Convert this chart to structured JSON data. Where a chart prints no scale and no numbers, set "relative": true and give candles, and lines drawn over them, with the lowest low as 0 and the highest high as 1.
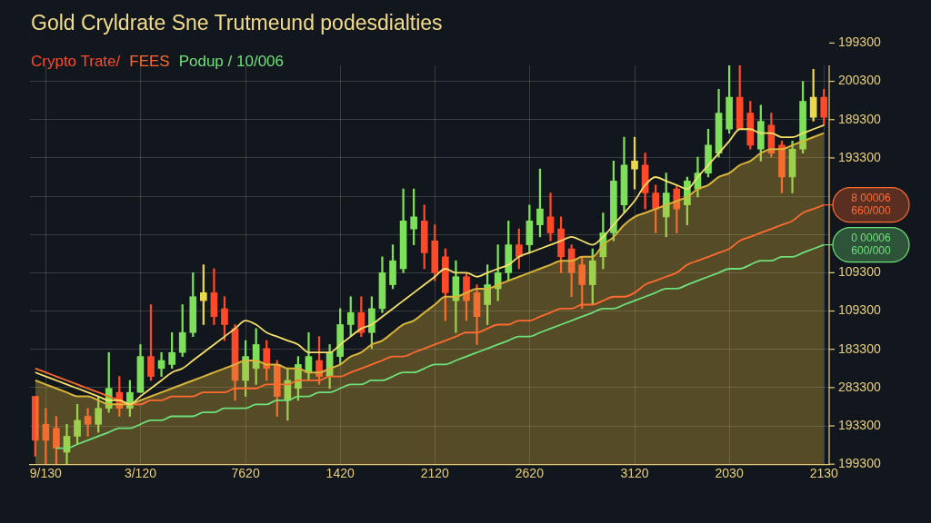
{
  "chart_data": {
    "type": "candlestick",
    "title": "Gold Cryldrate Sne Trutmeund podesdialties",
    "relative": true,
    "grid": true,
    "legend": "top left",
    "categories": [
      null,
      "9/130",
      null,
      null,
      null,
      null,
      null,
      null,
      null,
      null,
      "3/120",
      null,
      null,
      null,
      null,
      null,
      null,
      null,
      null,
      null,
      "7620",
      null,
      null,
      null,
      null,
      null,
      null,
      null,
      null,
      "1420",
      null,
      null,
      null,
      null,
      null,
      null,
      null,
      null,
      "2120",
      null,
      null,
      null,
      null,
      null,
      null,
      null,
      null,
      "2620",
      null,
      null,
      null,
      null,
      null,
      null,
      null,
      null,
      null,
      "3120",
      null,
      null,
      null,
      null,
      null,
      null,
      null,
      null,
      "2030",
      null,
      null,
      null,
      null,
      null,
      null,
      null,
      null,
      "2130"
    ],
    "annotations": [
      "199300",
      "200300",
      "189300",
      "193300",
      "109300",
      "109300",
      "183300",
      "283300",
      "193300",
      "199300",
      {
        "text": "8 00006\n660/000",
        "x": "2130",
        "y": 0.65
      },
      {
        "text": "0 00006\n600/000",
        "x": "2130",
        "y": 0.55
      }
    ],
    "series": [
      {
        "name": "Crypto Trate/",
        "color": "#ff4a2a",
        "ohlc": [
          [
            0.17,
            0.17,
            0.02,
            0.06
          ],
          [
            0.1,
            0.14,
            0,
            0.06
          ],
          [
            0.09,
            0.12,
            0,
            0.04
          ],
          [
            0.03,
            0.1,
            0,
            0.07
          ],
          [
            0.07,
            0.15,
            0.05,
            0.11
          ],
          [
            0.12,
            0.14,
            0.07,
            0.1
          ],
          [
            0.1,
            0.17,
            0.08,
            0.14
          ],
          [
            0.14,
            0.28,
            0.13,
            0.19
          ],
          [
            0.18,
            0.22,
            0.12,
            0.14
          ],
          [
            0.14,
            0.21,
            0.12,
            0.18
          ],
          [
            0.18,
            0.3,
            0.18,
            0.27
          ],
          [
            0.27,
            0.4,
            0.21,
            0.22
          ],
          [
            0.24,
            0.28,
            0.22,
            0.26
          ],
          [
            0.25,
            0.33,
            0.24,
            0.28
          ],
          [
            0.28,
            0.4,
            0.27,
            0.33
          ],
          [
            0.33,
            0.48,
            0.32,
            0.42
          ],
          [
            0.41,
            0.5,
            0.35,
            0.43
          ],
          [
            0.43,
            0.49,
            0.35,
            0.37
          ],
          [
            0.39,
            0.42,
            0.31,
            0.35
          ],
          [
            0.34,
            0.35,
            0.16,
            0.21
          ],
          [
            0.21,
            0.31,
            0.17,
            0.27
          ],
          [
            0.24,
            0.34,
            0.2,
            0.3
          ],
          [
            0.29,
            0.31,
            0.21,
            0.24
          ],
          [
            0.25,
            0.26,
            0.12,
            0.17
          ],
          [
            0.16,
            0.24,
            0.11,
            0.21
          ],
          [
            0.19,
            0.27,
            0.16,
            0.25
          ],
          [
            0.23,
            0.33,
            0.21,
            0.27
          ],
          [
            0.26,
            0.32,
            0.2,
            0.22
          ],
          [
            0.22,
            0.3,
            0.19,
            0.28
          ],
          [
            0.27,
            0.39,
            0.25,
            0.35
          ],
          [
            0.35,
            0.42,
            0.32,
            0.38
          ],
          [
            0.38,
            0.42,
            0.32,
            0.33
          ],
          [
            0.33,
            0.42,
            0.29,
            0.39
          ],
          [
            0.39,
            0.52,
            0.38,
            0.48
          ],
          [
            0.45,
            0.55,
            0.44,
            0.51
          ],
          [
            0.49,
            0.69,
            0.48,
            0.61
          ],
          [
            0.59,
            0.69,
            0.55,
            0.62
          ],
          [
            0.61,
            0.65,
            0.49,
            0.53
          ],
          [
            0.56,
            0.6,
            0.46,
            0.48
          ],
          [
            0.52,
            0.54,
            0.36,
            0.43
          ],
          [
            0.41,
            0.51,
            0.33,
            0.47
          ],
          [
            0.47,
            0.48,
            0.36,
            0.41
          ],
          [
            0.43,
            0.45,
            0.3,
            0.37
          ],
          [
            0.4,
            0.5,
            0.35,
            0.45
          ],
          [
            0.44,
            0.55,
            0.41,
            0.48
          ],
          [
            0.48,
            0.61,
            0.46,
            0.55
          ],
          [
            0.55,
            0.59,
            0.49,
            0.52
          ],
          [
            0.55,
            0.65,
            0.53,
            0.61
          ],
          [
            0.6,
            0.74,
            0.57,
            0.64
          ],
          [
            0.62,
            0.68,
            0.56,
            0.58
          ],
          [
            0.59,
            0.62,
            0.48,
            0.52
          ],
          [
            0.54,
            0.55,
            0.42,
            0.48
          ],
          [
            0.5,
            0.52,
            0.39,
            0.45
          ],
          [
            0.45,
            0.54,
            0.4,
            0.51
          ],
          [
            0.52,
            0.63,
            0.49,
            0.58
          ],
          [
            0.58,
            0.76,
            0.56,
            0.71
          ],
          [
            0.65,
            0.82,
            0.63,
            0.75
          ],
          [
            0.74,
            0.82,
            0.69,
            0.76
          ],
          [
            0.75,
            0.78,
            0.64,
            0.68
          ],
          [
            0.68,
            0.7,
            0.58,
            0.64
          ],
          [
            0.62,
            0.73,
            0.57,
            0.68
          ],
          [
            0.69,
            0.7,
            0.58,
            0.64
          ],
          [
            0.65,
            0.72,
            0.6,
            0.71
          ],
          [
            0.69,
            0.77,
            0.67,
            0.73
          ],
          [
            0.73,
            0.84,
            0.72,
            0.8
          ],
          [
            0.78,
            0.94,
            0.77,
            0.88
          ],
          [
            0.84,
            1,
            0.83,
            0.92
          ],
          [
            0.92,
            1,
            0.84,
            0.84
          ],
          [
            0.88,
            0.91,
            0.79,
            0.8
          ],
          [
            0.79,
            0.9,
            0.76,
            0.86
          ],
          [
            0.85,
            0.88,
            0.77,
            0.78
          ],
          [
            0.8,
            0.81,
            0.68,
            0.72
          ],
          [
            0.72,
            0.81,
            0.68,
            0.79
          ],
          [
            0.79,
            0.96,
            0.78,
            0.91
          ],
          [
            0.87,
            0.99,
            0.86,
            0.92
          ],
          [
            0.92,
            0.94,
            0.85,
            0.87
          ]
        ],
        "colors": [
          "#ff4a2a",
          "#ff4a2a",
          "#ff4a2a",
          "#7ee05a",
          "#7ee05a",
          "#ff4a2a",
          "#7ee05a",
          "#7ee05a",
          "#ff4a2a",
          "#7ee05a",
          "#7ee05a",
          "#ff4a2a",
          "#7ee05a",
          "#7ee05a",
          "#7ee05a",
          "#7ee05a",
          "#e8d84a",
          "#ff4a2a",
          "#ff4a2a",
          "#ff4a2a",
          "#7ee05a",
          "#7ee05a",
          "#ff4a2a",
          "#ff4a2a",
          "#7ee05a",
          "#7ee05a",
          "#7ee05a",
          "#ff4a2a",
          "#7ee05a",
          "#7ee05a",
          "#7ee05a",
          "#ff4a2a",
          "#7ee05a",
          "#7ee05a",
          "#7ee05a",
          "#7ee05a",
          "#7ee05a",
          "#ff4a2a",
          "#ff4a2a",
          "#ff4a2a",
          "#7ee05a",
          "#ff4a2a",
          "#ff4a2a",
          "#7ee05a",
          "#7ee05a",
          "#7ee05a",
          "#ff4a2a",
          "#7ee05a",
          "#7ee05a",
          "#ff4a2a",
          "#ff4a2a",
          "#ff4a2a",
          "#ff4a2a",
          "#7ee05a",
          "#7ee05a",
          "#7ee05a",
          "#7ee05a",
          "#e8d84a",
          "#ff4a2a",
          "#ff4a2a",
          "#7ee05a",
          "#ff4a2a",
          "#7ee05a",
          "#7ee05a",
          "#7ee05a",
          "#7ee05a",
          "#7ee05a",
          "#ff4a2a",
          "#ff4a2a",
          "#7ee05a",
          "#ff4a2a",
          "#ff4a2a",
          "#7ee05a",
          "#7ee05a",
          "#e8d84a",
          "#ff4a2a"
        ]
      },
      {
        "type": "area",
        "color": "#d9b43a",
        "values": [
          0.21,
          0.2,
          0.19,
          0.18,
          0.17,
          0.17,
          0.16,
          0.15,
          0.15,
          0.15,
          0.16,
          0.17,
          0.18,
          0.19,
          0.2,
          0.21,
          0.22,
          0.23,
          0.24,
          0.25,
          0.26,
          0.26,
          0.25,
          0.25,
          0.24,
          0.24,
          0.23,
          0.23,
          0.24,
          0.25,
          0.27,
          0.28,
          0.3,
          0.31,
          0.33,
          0.35,
          0.36,
          0.38,
          0.4,
          0.42,
          0.42,
          0.43,
          0.44,
          0.44,
          0.45,
          0.46,
          0.47,
          0.48,
          0.49,
          0.5,
          0.51,
          0.51,
          0.52,
          0.52,
          0.55,
          0.57,
          0.6,
          0.62,
          0.63,
          0.64,
          0.65,
          0.66,
          0.67,
          0.69,
          0.7,
          0.72,
          0.73,
          0.75,
          0.76,
          0.78,
          0.79,
          0.79,
          0.8,
          0.81,
          0.82,
          0.83
        ]
      },
      {
        "type": "line",
        "color": "#f5e06a",
        "values": [
          0.23,
          0.22,
          0.21,
          0.2,
          0.19,
          0.18,
          0.17,
          0.16,
          0.16,
          0.15,
          0.17,
          0.19,
          0.21,
          0.23,
          0.24,
          0.26,
          0.28,
          0.3,
          0.32,
          0.34,
          0.36,
          0.35,
          0.33,
          0.32,
          0.31,
          0.3,
          0.28,
          0.28,
          0.28,
          0.3,
          0.32,
          0.34,
          0.35,
          0.37,
          0.39,
          0.41,
          0.43,
          0.45,
          0.47,
          0.49,
          0.48,
          0.48,
          0.47,
          0.48,
          0.49,
          0.5,
          0.52,
          0.53,
          0.54,
          0.55,
          0.56,
          0.57,
          0.56,
          0.55,
          0.57,
          0.6,
          0.63,
          0.66,
          0.7,
          0.72,
          0.71,
          0.7,
          0.69,
          0.72,
          0.75,
          0.78,
          0.81,
          0.84,
          0.84,
          0.83,
          0.83,
          0.82,
          0.82,
          0.83,
          0.84,
          0.85
        ]
      },
      {
        "type": "line",
        "name": "FEES",
        "color": "#ff6a30",
        "values": [
          0.24,
          0.23,
          0.22,
          0.21,
          0.2,
          0.19,
          0.18,
          0.17,
          0.16,
          0.15,
          0.15,
          0.16,
          0.16,
          0.17,
          0.17,
          0.17,
          0.18,
          0.18,
          0.18,
          0.19,
          0.19,
          0.19,
          0.2,
          0.2,
          0.2,
          0.21,
          0.21,
          0.21,
          0.22,
          0.22,
          0.23,
          0.24,
          0.25,
          0.26,
          0.27,
          0.27,
          0.28,
          0.29,
          0.3,
          0.31,
          0.32,
          0.33,
          0.33,
          0.34,
          0.35,
          0.35,
          0.36,
          0.36,
          0.37,
          0.38,
          0.39,
          0.39,
          0.4,
          0.4,
          0.41,
          0.42,
          0.42,
          0.43,
          0.45,
          0.46,
          0.47,
          0.48,
          0.5,
          0.51,
          0.52,
          0.53,
          0.54,
          0.56,
          0.57,
          0.58,
          0.59,
          0.6,
          0.61,
          0.63,
          0.64,
          0.65
        ]
      },
      {
        "type": "line",
        "name": "Podup / 10/006",
        "color": "#6ee07a",
        "values": [
          null,
          null,
          0.04,
          0.04,
          0.05,
          0.06,
          0.07,
          0.08,
          0.09,
          0.09,
          0.1,
          0.11,
          0.11,
          0.12,
          0.12,
          0.12,
          0.13,
          0.13,
          0.14,
          0.14,
          0.14,
          0.15,
          0.15,
          0.16,
          0.16,
          0.17,
          0.17,
          0.18,
          0.18,
          0.19,
          0.2,
          0.2,
          0.21,
          0.21,
          0.22,
          0.23,
          0.23,
          0.24,
          0.25,
          0.25,
          0.26,
          0.27,
          0.28,
          0.29,
          0.3,
          0.31,
          0.32,
          0.32,
          0.33,
          0.34,
          0.35,
          0.36,
          0.37,
          0.38,
          0.39,
          0.39,
          0.4,
          0.41,
          0.42,
          0.43,
          0.44,
          0.44,
          0.45,
          0.46,
          0.47,
          0.48,
          0.49,
          0.49,
          0.5,
          0.51,
          0.51,
          0.52,
          0.52,
          0.53,
          0.54,
          0.55
        ]
      }
    ]
  }
}
